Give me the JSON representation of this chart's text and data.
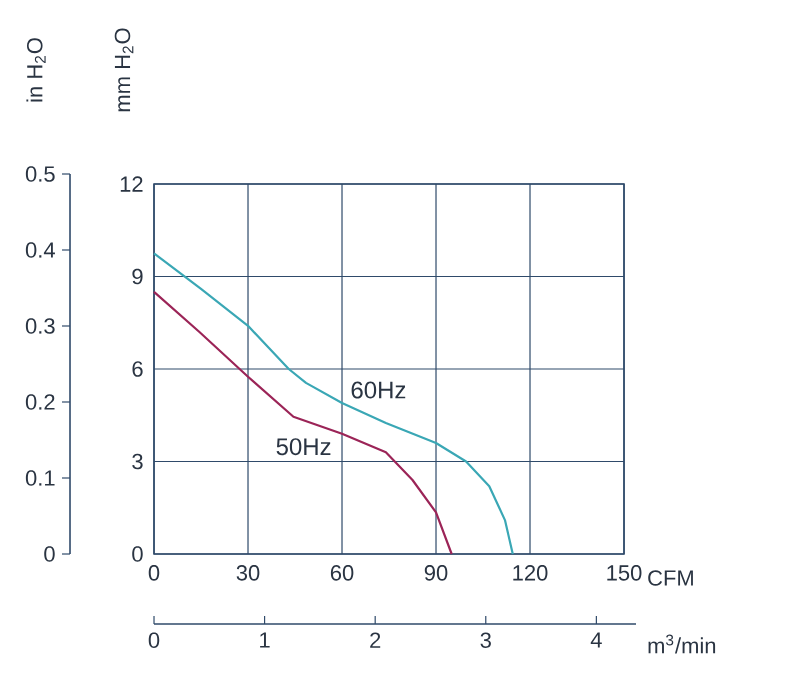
{
  "chart_data": {
    "type": "line",
    "xlabel": "CFM",
    "ylabel": "mm H$_{2}$O",
    "y2label": "in H$_{2}$O",
    "x2label": "m$^{3}$/min",
    "xlim": [
      0,
      150
    ],
    "xticks": [
      0,
      30,
      60,
      90,
      120,
      150
    ],
    "ylim": [
      0,
      12
    ],
    "yticks": [
      0,
      3,
      6,
      9,
      12
    ],
    "y2lim": [
      0,
      0.5
    ],
    "y2ticks": [
      0,
      0.1,
      0.2,
      0.3,
      0.4,
      0.5
    ],
    "x2lim": [
      0,
      4.25
    ],
    "x2ticks": [
      0,
      1,
      2,
      3,
      4
    ],
    "grid": true,
    "legend": false,
    "series": [
      {
        "name": "60Hz",
        "color": "#3aa7b5",
        "x": [
          0,
          15,
          30,
          43,
          48.5,
          60,
          74,
          90,
          99.6,
          107,
          112,
          114.5
        ],
        "values": [
          9.75,
          8.6,
          7.4,
          6.0,
          5.55,
          4.9,
          4.25,
          3.6,
          3.0,
          2.2,
          1.1,
          0
        ]
      },
      {
        "name": "50Hz",
        "color": "#9b2457",
        "x": [
          0,
          14.5,
          30,
          44.5,
          60,
          74,
          82.5,
          90,
          95
        ],
        "values": [
          8.5,
          7.2,
          5.75,
          4.45,
          3.9,
          3.3,
          2.4,
          1.35,
          0
        ]
      }
    ]
  }
}
